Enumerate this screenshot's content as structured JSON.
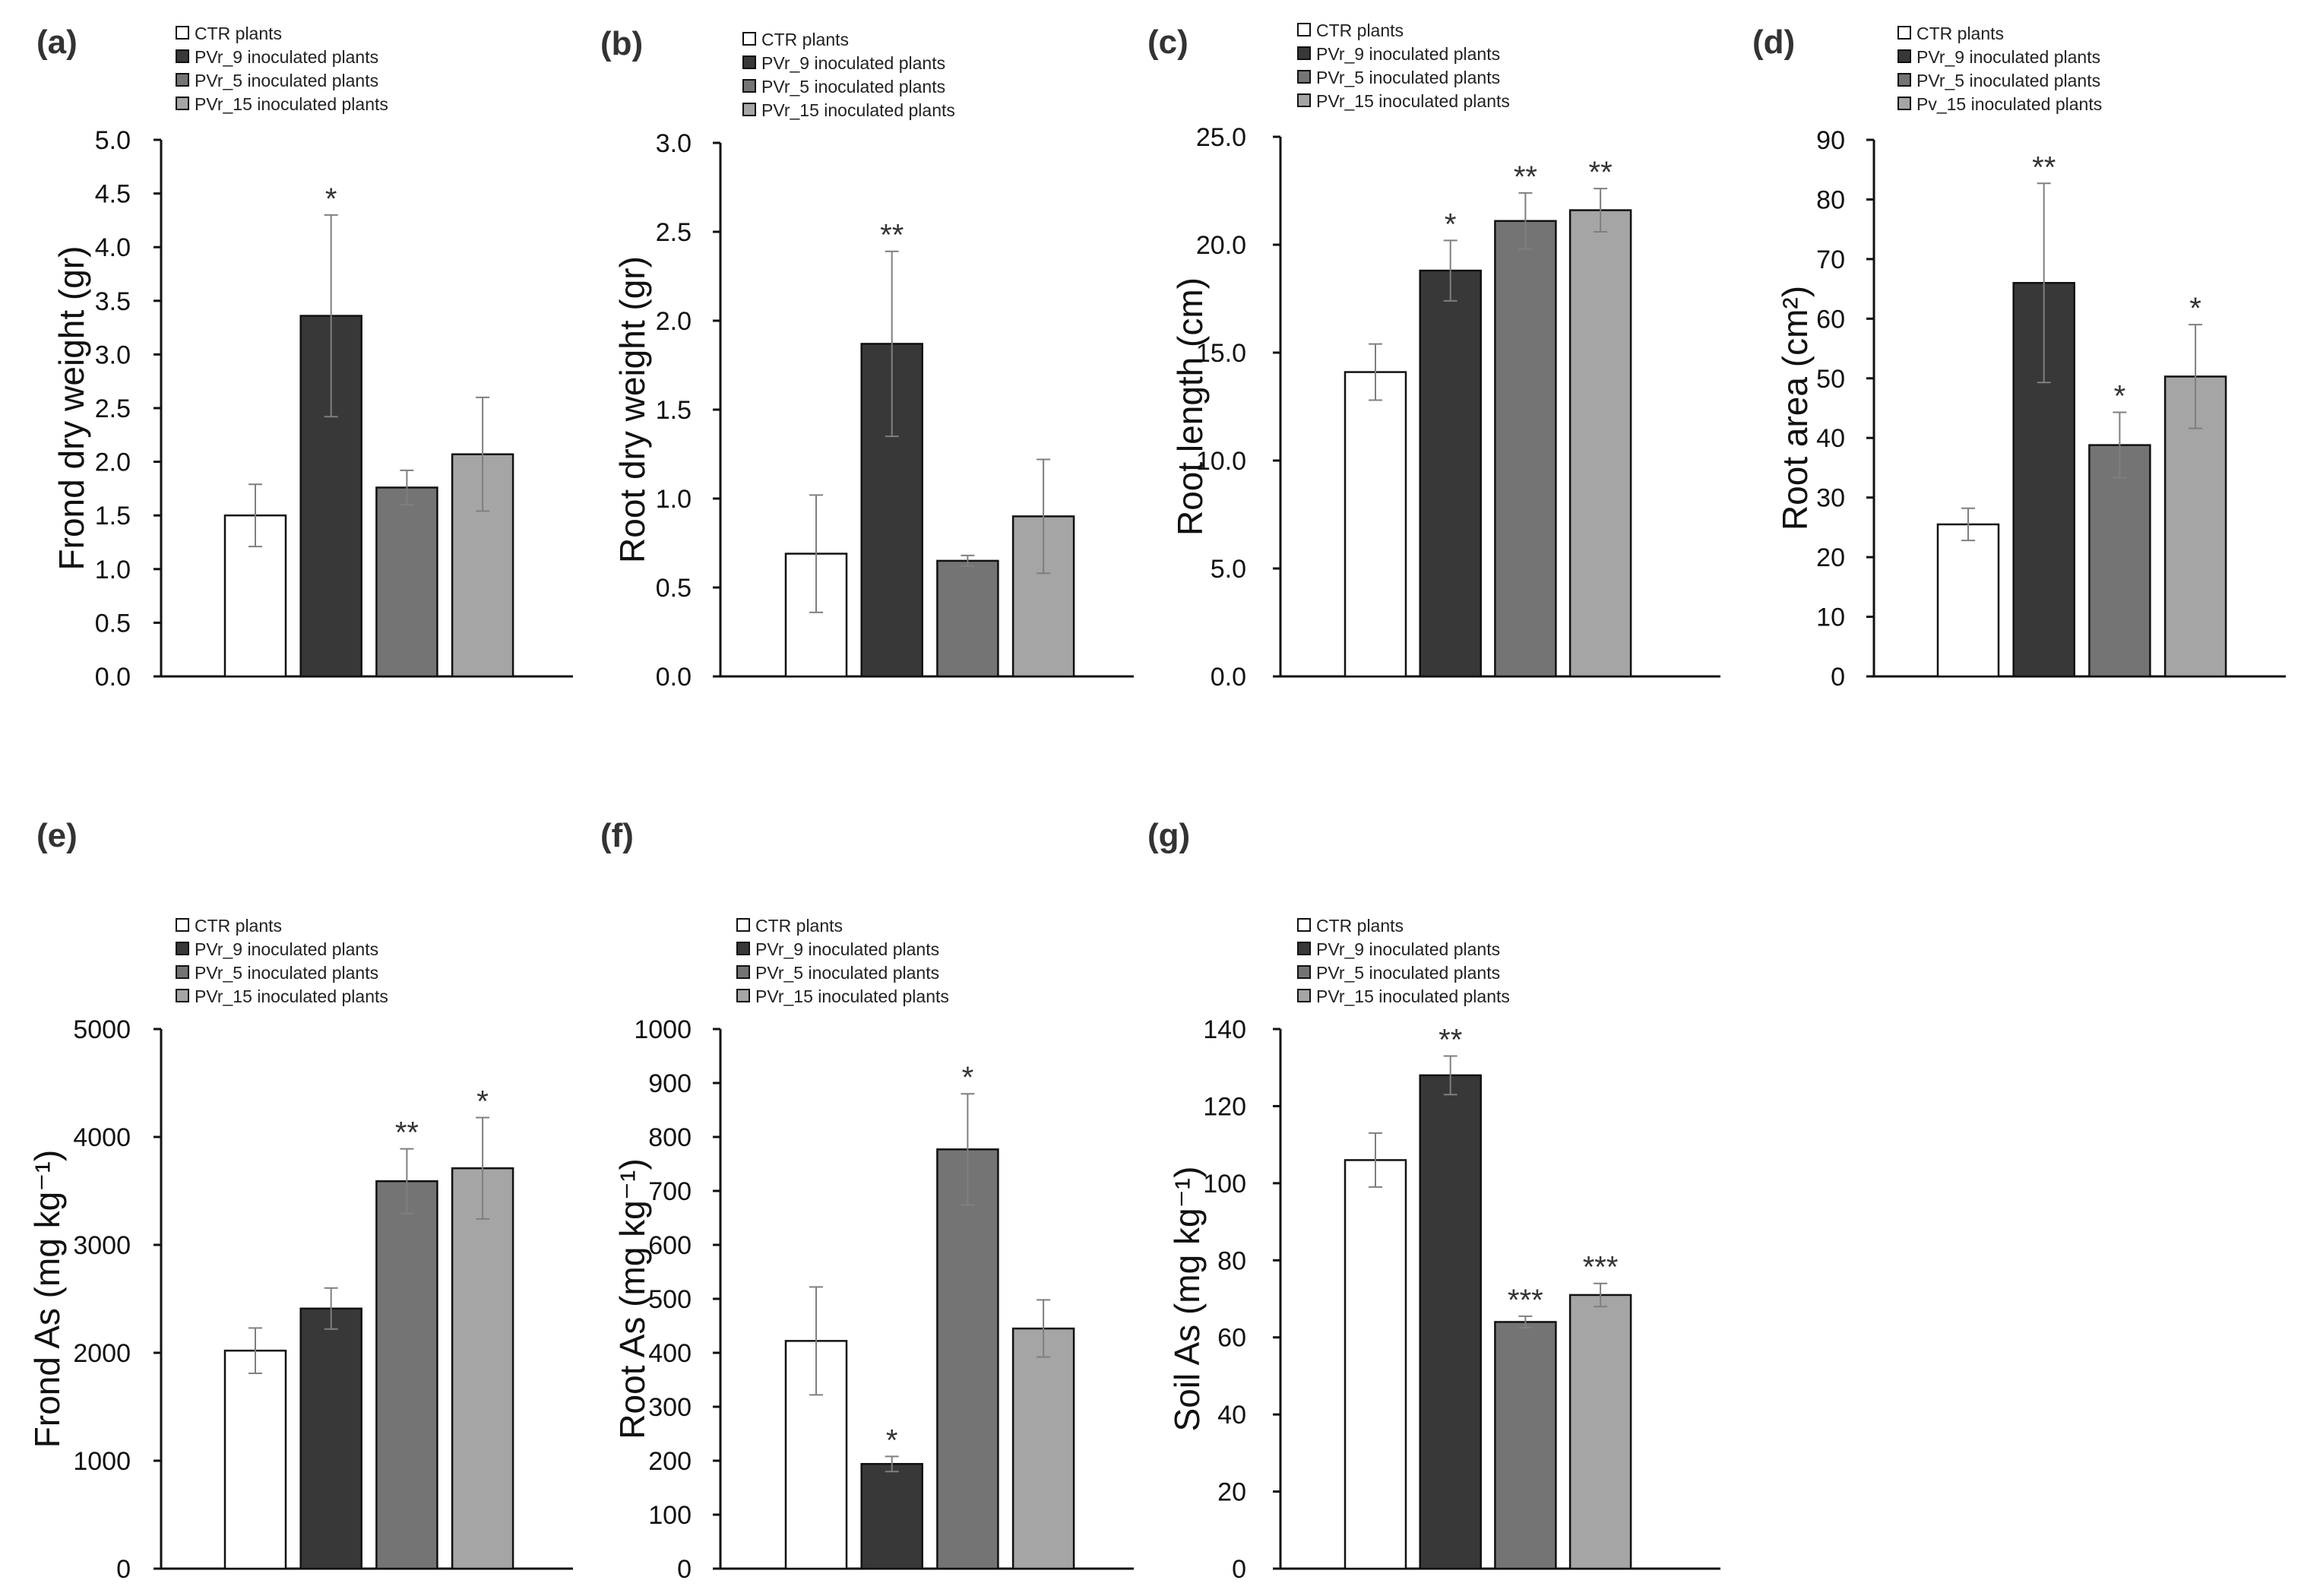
{
  "colors": {
    "CTR": "#ffffff",
    "PVr_9": "#383838",
    "PVr_5": "#747474",
    "PVr_15": "#a5a5a5",
    "axis": "#111111",
    "error_bar": "#7f7f7f"
  },
  "chart_data": [
    {
      "panel_label": "(a)",
      "type": "bar",
      "ylabel": "Frond dry weight (gr)",
      "legend": [
        "CTR plants",
        "PVr_9 inoculated plants",
        "PVr_5 inoculated plants",
        "PVr_15 inoculated plants"
      ],
      "series_keys": [
        "CTR",
        "PVr_9",
        "PVr_5",
        "PVr_15"
      ],
      "values": [
        1.5,
        3.36,
        1.76,
        2.07
      ],
      "errors": [
        0.29,
        0.94,
        0.16,
        0.53
      ],
      "significance": [
        "",
        "*",
        "",
        ""
      ],
      "ylim": [
        0,
        5
      ],
      "yticks": [
        "0.0",
        "0.5",
        "1.0",
        "1.5",
        "2.0",
        "2.5",
        "3.0",
        "3.5",
        "4.0",
        "4.5",
        "5.0"
      ]
    },
    {
      "panel_label": "(b)",
      "type": "bar",
      "ylabel": "Root dry weight (gr)",
      "legend": [
        "CTR plants",
        "PVr_9 inoculated plants",
        "PVr_5 inoculated plants",
        "PVr_15 inoculated plants"
      ],
      "series_keys": [
        "CTR",
        "PVr_9",
        "PVr_5",
        "PVr_15"
      ],
      "values": [
        0.69,
        1.87,
        0.65,
        0.9
      ],
      "errors": [
        0.33,
        0.52,
        0.03,
        0.32
      ],
      "significance": [
        "",
        "**",
        "",
        ""
      ],
      "ylim": [
        0,
        3
      ],
      "yticks": [
        "0.0",
        "0.5",
        "1.0",
        "1.5",
        "2.0",
        "2.5",
        "3.0"
      ]
    },
    {
      "panel_label": "(c)",
      "type": "bar",
      "ylabel": "Root length (cm)",
      "legend": [
        "CTR plants",
        "PVr_9 inoculated plants",
        "PVr_5 inoculated plants",
        "PVr_15 inoculated plants"
      ],
      "series_keys": [
        "CTR",
        "PVr_9",
        "PVr_5",
        "PVr_15"
      ],
      "values": [
        14.1,
        18.8,
        21.1,
        21.6
      ],
      "errors": [
        1.3,
        1.4,
        1.3,
        1.0
      ],
      "significance": [
        "",
        "*",
        "**",
        "**"
      ],
      "ylim": [
        0,
        25
      ],
      "yticks": [
        "0.0",
        "5.0",
        "10.0",
        "15.0",
        "20.0",
        "25.0"
      ]
    },
    {
      "panel_label": "(d)",
      "type": "bar",
      "ylabel": "Root area (cm²)",
      "legend": [
        "CTR plants",
        "PVr_9 inoculated plants",
        "PVr_5 inoculated plants",
        "Pv_15 inoculated plants"
      ],
      "series_keys": [
        "CTR",
        "PVr_9",
        "PVr_5",
        "PVr_15"
      ],
      "values": [
        25.5,
        66,
        38.8,
        50.3
      ],
      "errors": [
        2.7,
        16.7,
        5.5,
        8.7
      ],
      "significance": [
        "",
        "**",
        "*",
        "*"
      ],
      "ylim": [
        0,
        90
      ],
      "yticks": [
        "0",
        "10",
        "20",
        "30",
        "40",
        "50",
        "60",
        "70",
        "80",
        "90"
      ]
    },
    {
      "panel_label": "(e)",
      "type": "bar",
      "ylabel": "Frond As (mg kg⁻¹)",
      "legend": [
        "CTR plants",
        "PVr_9 inoculated plants",
        "PVr_5 inoculated plants",
        "PVr_15 inoculated plants"
      ],
      "series_keys": [
        "CTR",
        "PVr_9",
        "PVr_5",
        "PVr_15"
      ],
      "values": [
        2020,
        2410,
        3590,
        3710
      ],
      "errors": [
        210,
        190,
        300,
        470
      ],
      "significance": [
        "",
        "",
        "**",
        "*"
      ],
      "ylim": [
        0,
        5000
      ],
      "yticks": [
        "0",
        "1000",
        "2000",
        "3000",
        "4000",
        "5000"
      ]
    },
    {
      "panel_label": "(f)",
      "type": "bar",
      "ylabel": "Root As (mg kg⁻¹)",
      "legend": [
        "CTR plants",
        "PVr_9 inoculated plants",
        "PVr_5 inoculated plants",
        "PVr_15 inoculated plants"
      ],
      "series_keys": [
        "CTR",
        "PVr_9",
        "PVr_5",
        "PVr_15"
      ],
      "values": [
        422,
        194,
        777,
        445
      ],
      "errors": [
        100,
        14,
        103,
        53
      ],
      "significance": [
        "",
        "*",
        "*",
        ""
      ],
      "ylim": [
        0,
        1000
      ],
      "yticks": [
        "0",
        "100",
        "200",
        "300",
        "400",
        "500",
        "600",
        "700",
        "800",
        "900",
        "1000"
      ]
    },
    {
      "panel_label": "(g)",
      "type": "bar",
      "ylabel": "Soil As (mg kg⁻¹)",
      "legend": [
        "CTR plants",
        "PVr_9 inoculated plants",
        "PVr_5 inoculated plants",
        "PVr_15 inoculated plants"
      ],
      "series_keys": [
        "CTR",
        "PVr_9",
        "PVr_5",
        "PVr_15"
      ],
      "values": [
        106,
        128,
        64,
        71
      ],
      "errors": [
        7,
        5,
        1.5,
        3
      ],
      "significance": [
        "",
        "**",
        "***",
        "***"
      ],
      "ylim": [
        0,
        140
      ],
      "yticks": [
        "0",
        "20",
        "40",
        "60",
        "80",
        "100",
        "120",
        "140"
      ]
    }
  ]
}
